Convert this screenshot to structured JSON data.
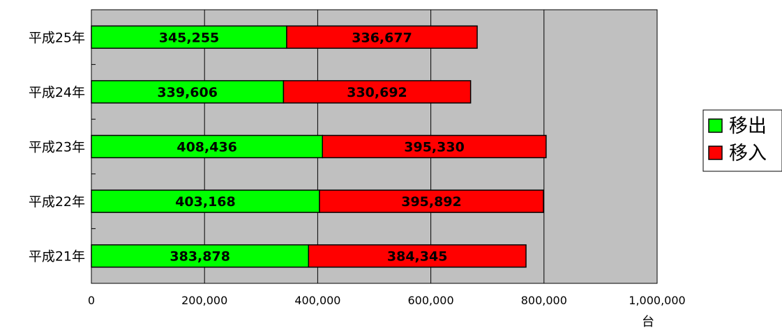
{
  "chart_data": {
    "type": "bar",
    "orientation": "horizontal",
    "stacked": true,
    "categories": [
      "平成25年",
      "平成24年",
      "平成23年",
      "平成22年",
      "平成21年"
    ],
    "series": [
      {
        "name": "移出",
        "color": "#00ff00",
        "values": [
          345255,
          339606,
          408436,
          403168,
          383878
        ],
        "labels": [
          "345,255",
          "339,606",
          "408,436",
          "403,168",
          "383,878"
        ]
      },
      {
        "name": "移入",
        "color": "#ff0000",
        "values": [
          336677,
          330692,
          395330,
          395892,
          384345
        ],
        "labels": [
          "336,677",
          "330,692",
          "395,330",
          "395,892",
          "384,345"
        ]
      }
    ],
    "xlim": [
      0,
      1000000
    ],
    "xticks": [
      "0",
      "200,000",
      "400,000",
      "600,000",
      "800,000",
      "1,000,000"
    ],
    "x_unit": "台",
    "grid": true,
    "plot_background": "#c0c0c0",
    "legend_position": "right"
  }
}
